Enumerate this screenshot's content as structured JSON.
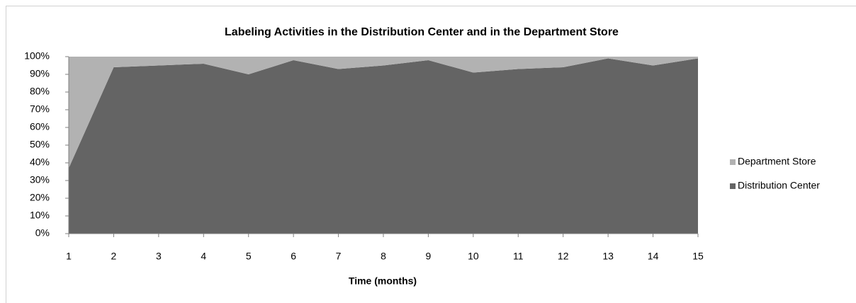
{
  "chart_data": {
    "type": "stacked_area",
    "title": "Labeling Activities in the Distribution Center and in the Department Store",
    "xlabel": "Time (months)",
    "x": [
      1,
      2,
      3,
      4,
      5,
      6,
      7,
      8,
      9,
      10,
      11,
      12,
      13,
      14,
      15
    ],
    "series": [
      {
        "name": "Distribution Center",
        "color": "#646464",
        "values": [
          37,
          94,
          95,
          96,
          90,
          98,
          93,
          95,
          98,
          91,
          93,
          94,
          99,
          95,
          99
        ]
      },
      {
        "name": "Department Store",
        "color": "#b2b2b2",
        "values": [
          63,
          6,
          5,
          4,
          10,
          2,
          7,
          5,
          2,
          9,
          7,
          6,
          1,
          5,
          1
        ]
      }
    ],
    "xlim": [
      1,
      15
    ],
    "xticks": [
      1,
      2,
      3,
      4,
      5,
      6,
      7,
      8,
      9,
      10,
      11,
      12,
      13,
      14,
      15
    ],
    "ylim": [
      0,
      100
    ],
    "yticks": [
      {
        "value": 0,
        "label": "0%"
      },
      {
        "value": 10,
        "label": "10%"
      },
      {
        "value": 20,
        "label": "20%"
      },
      {
        "value": 30,
        "label": "30%"
      },
      {
        "value": 40,
        "label": "40%"
      },
      {
        "value": 50,
        "label": "50%"
      },
      {
        "value": 60,
        "label": "60%"
      },
      {
        "value": 70,
        "label": "70%"
      },
      {
        "value": 80,
        "label": "80%"
      },
      {
        "value": 90,
        "label": "90%"
      },
      {
        "value": 100,
        "label": "100%"
      }
    ],
    "legend": "right",
    "grid": false
  }
}
